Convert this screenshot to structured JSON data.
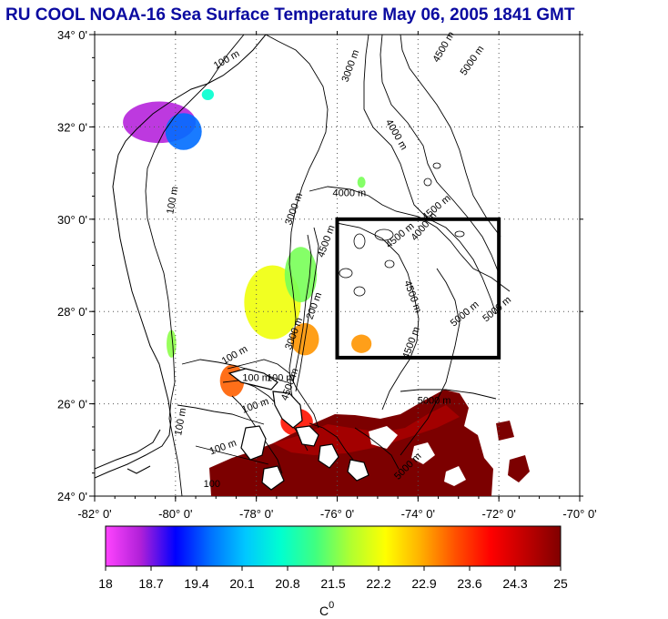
{
  "title": "RU COOL  NOAA-16 Sea Surface Temperature May 06, 2005 1841 GMT",
  "map": {
    "lon_range": [
      -82,
      -70
    ],
    "lat_range": [
      24,
      34
    ],
    "x_ticks": [
      "-82° 0'",
      "-80° 0'",
      "-78° 0'",
      "-76° 0'",
      "-74° 0'",
      "-72° 0'",
      "-70° 0'"
    ],
    "y_ticks": [
      "34° 0'",
      "32° 0'",
      "30° 0'",
      "28° 0'",
      "26° 0'",
      "24° 0'"
    ],
    "grid": "dotted",
    "study_box": {
      "lon": [
        -76,
        -72
      ],
      "lat": [
        27,
        30
      ]
    },
    "contour_labels": [
      {
        "text": "100 m",
        "lon": -78.7,
        "lat": 33.4,
        "angle": -30
      },
      {
        "text": "3000 m",
        "lon": -75.6,
        "lat": 33.3,
        "angle": -70
      },
      {
        "text": "4500 m",
        "lon": -73.3,
        "lat": 33.7,
        "angle": -60
      },
      {
        "text": "5000 m",
        "lon": -72.6,
        "lat": 33.4,
        "angle": -55
      },
      {
        "text": "4000 m",
        "lon": -74.6,
        "lat": 31.8,
        "angle": 60
      },
      {
        "text": "100 m",
        "lon": -80.0,
        "lat": 30.4,
        "angle": -80
      },
      {
        "text": "3000 m",
        "lon": -77.0,
        "lat": 30.2,
        "angle": -70
      },
      {
        "text": "4000 m",
        "lon": -75.7,
        "lat": 30.5,
        "angle": 0
      },
      {
        "text": "4500 m",
        "lon": -73.5,
        "lat": 30.2,
        "angle": -40
      },
      {
        "text": "4500 m",
        "lon": -74.4,
        "lat": 29.6,
        "angle": -40
      },
      {
        "text": "4500 m",
        "lon": -74.2,
        "lat": 28.3,
        "angle": 70
      },
      {
        "text": "4500 m",
        "lon": -74.1,
        "lat": 27.3,
        "angle": -70
      },
      {
        "text": "5000 m",
        "lon": -72.8,
        "lat": 27.9,
        "angle": -40
      },
      {
        "text": "100 m",
        "lon": -78.5,
        "lat": 27.0,
        "angle": -30
      },
      {
        "text": "100 m",
        "lon": -78.0,
        "lat": 26.5,
        "angle": 0
      },
      {
        "text": "100 m",
        "lon": -77.4,
        "lat": 26.5,
        "angle": 0
      },
      {
        "text": "100 m",
        "lon": -78.0,
        "lat": 25.9,
        "angle": -20
      },
      {
        "text": "100 m",
        "lon": -79.8,
        "lat": 25.6,
        "angle": -80
      },
      {
        "text": "100 m",
        "lon": -78.8,
        "lat": 25.0,
        "angle": -20
      },
      {
        "text": "100",
        "lon": -79.1,
        "lat": 24.2,
        "angle": 0
      },
      {
        "text": "5000 m",
        "lon": -73.6,
        "lat": 26.0,
        "angle": 0
      },
      {
        "text": "3000 m",
        "lon": -77.0,
        "lat": 27.5,
        "angle": -70
      },
      {
        "text": "200 m",
        "lon": -76.5,
        "lat": 28.1,
        "angle": -70
      },
      {
        "text": "4500 m",
        "lon": -77.1,
        "lat": 26.4,
        "angle": -70
      },
      {
        "text": "4500 m",
        "lon": -76.2,
        "lat": 29.5,
        "angle": -70
      },
      {
        "text": "4000 m",
        "lon": -73.8,
        "lat": 29.8,
        "angle": -50
      },
      {
        "text": "5000 m",
        "lon": -72.0,
        "lat": 28.0,
        "angle": -40
      },
      {
        "text": "5000 m",
        "lon": -74.2,
        "lat": 24.6,
        "angle": -45
      }
    ]
  },
  "colorbar": {
    "ticks": [
      "18",
      "18.7",
      "19.4",
      "20.1",
      "20.8",
      "21.5",
      "22.2",
      "22.9",
      "23.6",
      "24.3",
      "25"
    ],
    "min": 18,
    "max": 25,
    "unit": "C",
    "unit_superscript": "0",
    "stops": [
      "#ff44ff",
      "#b020d8",
      "#0000ff",
      "#0070ff",
      "#00c8ff",
      "#00ffd0",
      "#40ff80",
      "#b0ff30",
      "#ffff00",
      "#ffb000",
      "#ff5000",
      "#ff0000",
      "#c00000",
      "#800000"
    ]
  },
  "sst_patches": [
    {
      "name": "sst-patch-georgia-bight",
      "lon": -80.4,
      "lat": 32.1,
      "rx": 0.9,
      "ry": 0.45,
      "temp": 18.5
    },
    {
      "name": "sst-patch-georgia-bight-blue",
      "lon": -79.8,
      "lat": 31.9,
      "rx": 0.45,
      "ry": 0.4,
      "temp": 19.6
    },
    {
      "name": "sst-patch-sc-coast",
      "lon": -79.2,
      "lat": 32.7,
      "rx": 0.15,
      "ry": 0.12,
      "temp": 20.7
    },
    {
      "name": "sst-patch-blake-plateau",
      "lon": -77.6,
      "lat": 28.2,
      "rx": 0.7,
      "ry": 0.8,
      "temp": 22.2
    },
    {
      "name": "sst-patch-blake-plateau-green",
      "lon": -76.9,
      "lat": 28.8,
      "rx": 0.4,
      "ry": 0.6,
      "temp": 21.5
    },
    {
      "name": "sst-patch-fl-coast",
      "lon": -80.1,
      "lat": 27.3,
      "rx": 0.12,
      "ry": 0.3,
      "temp": 21.6
    },
    {
      "name": "sst-patch-bahamas-north",
      "lon": -78.6,
      "lat": 26.5,
      "rx": 0.3,
      "ry": 0.35,
      "temp": 23.3
    },
    {
      "name": "sst-patch-scatter-west",
      "lon": -76.8,
      "lat": 27.4,
      "rx": 0.35,
      "ry": 0.35,
      "temp": 23.0
    },
    {
      "name": "sst-patch-box-west",
      "lon": -75.4,
      "lat": 27.3,
      "rx": 0.25,
      "ry": 0.2,
      "temp": 23.0
    },
    {
      "name": "sst-patch-north-cape",
      "lon": -75.4,
      "lat": 30.8,
      "rx": 0.1,
      "ry": 0.12,
      "temp": 21.5
    },
    {
      "name": "sst-patch-bahamas-warm",
      "lon": -77.0,
      "lat": 25.6,
      "rx": 0.4,
      "ry": 0.3,
      "temp": 23.8
    }
  ]
}
